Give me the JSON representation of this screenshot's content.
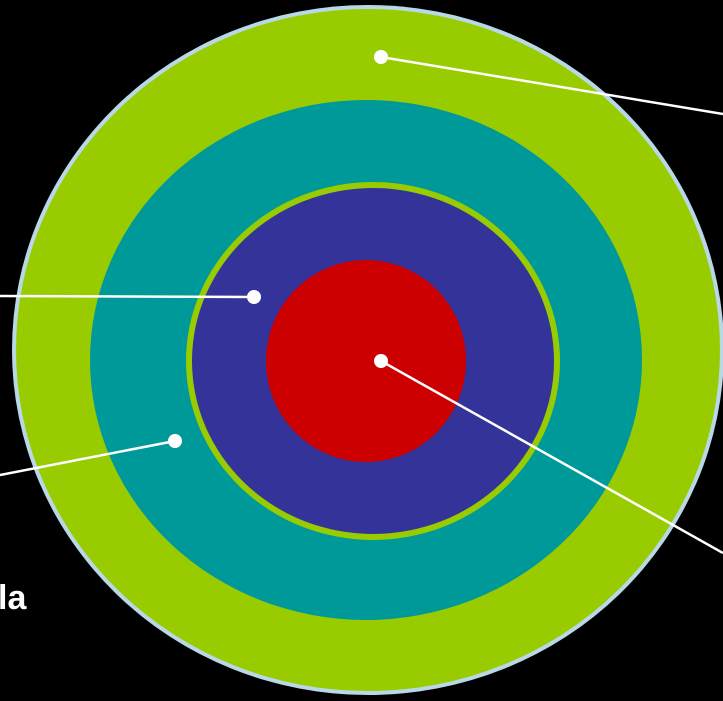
{
  "diagram": {
    "colors": {
      "background": "#000000",
      "outer_border": "#b8d8e8",
      "outer_ring": "#99cc00",
      "middle_ring": "#009999",
      "inner_ring_border": "#99cc00",
      "inner_ring": "#333399",
      "core": "#cc0000",
      "leader_line": "#ffffff",
      "label_text": "#ffffff"
    },
    "layers": [
      {
        "name": "outer-ring",
        "color": "#99cc00"
      },
      {
        "name": "middle-ring",
        "color": "#009999"
      },
      {
        "name": "inner-ring",
        "color": "#333399"
      },
      {
        "name": "core",
        "color": "#cc0000"
      }
    ],
    "partial_label": "la"
  }
}
